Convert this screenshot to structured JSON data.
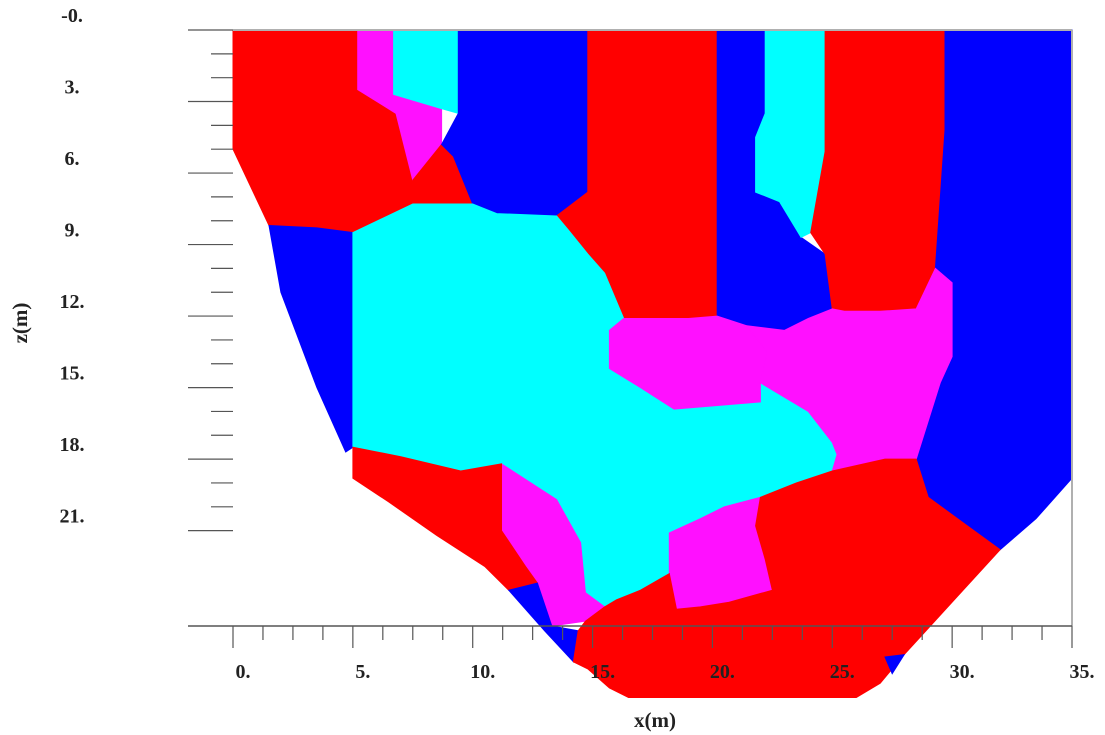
{
  "chart_data": {
    "type": "heatmap",
    "title": "",
    "xlabel": "x(m)",
    "ylabel": "z(m)",
    "xlim": [
      0,
      35
    ],
    "ylim": [
      0,
      25
    ],
    "y_axis_inverted": true,
    "x_ticks": [
      "0.",
      "5.",
      "10.",
      "15.",
      "20.",
      "25.",
      "30.",
      "35."
    ],
    "y_ticks": [
      "-0.",
      "3.",
      "6.",
      "9.",
      "12.",
      "15.",
      "18.",
      "21."
    ],
    "x_tick_values": [
      0,
      5,
      10,
      15,
      20,
      25,
      30,
      35
    ],
    "y_tick_values": [
      0,
      3,
      6,
      9,
      12,
      15,
      18,
      21
    ],
    "grid": false,
    "legend": "none",
    "colors": {
      "red": "#ff0000",
      "blue": "#0000ff",
      "cyan": "#00ffff",
      "magenta": "#ff10ff"
    },
    "regions": [
      {
        "color": "red",
        "polygon": [
          [
            0,
            0
          ],
          [
            5.2,
            0
          ],
          [
            5.2,
            2.5
          ],
          [
            6.8,
            3.5
          ],
          [
            7.5,
            5.6
          ],
          [
            7.5,
            7.3
          ],
          [
            5,
            8.5
          ],
          [
            3.5,
            8.3
          ],
          [
            1.5,
            8.2
          ],
          [
            0,
            5
          ]
        ]
      },
      {
        "color": "magenta",
        "polygon": [
          [
            5.2,
            0
          ],
          [
            6.7,
            0
          ],
          [
            6.7,
            2.7
          ],
          [
            8.7,
            3.3
          ],
          [
            8.7,
            4.8
          ],
          [
            7.5,
            6.3
          ],
          [
            6.8,
            3.5
          ],
          [
            5.2,
            2.5
          ]
        ]
      },
      {
        "color": "cyan",
        "polygon": [
          [
            6.7,
            0
          ],
          [
            9.4,
            0
          ],
          [
            9.4,
            3.5
          ],
          [
            8.7,
            3.3
          ],
          [
            6.7,
            2.7
          ]
        ]
      },
      {
        "color": "red",
        "polygon": [
          [
            8.7,
            4.8
          ],
          [
            9.2,
            5.3
          ],
          [
            10,
            7.3
          ],
          [
            7.5,
            7.3
          ],
          [
            7.5,
            6.3
          ]
        ]
      },
      {
        "color": "blue",
        "polygon": [
          [
            9.4,
            0
          ],
          [
            14.8,
            0
          ],
          [
            14.8,
            6.8
          ],
          [
            13.5,
            7.8
          ],
          [
            11,
            7.7
          ],
          [
            9.5,
            7.3
          ],
          [
            10,
            7.3
          ],
          [
            9.2,
            5.3
          ],
          [
            8.7,
            4.8
          ],
          [
            9.4,
            3.5
          ]
        ]
      },
      {
        "color": "red",
        "polygon": [
          [
            14.8,
            0
          ],
          [
            20.2,
            0
          ],
          [
            20.2,
            12
          ],
          [
            19,
            12.1
          ],
          [
            16.3,
            12.1
          ],
          [
            15.5,
            10.2
          ],
          [
            14.8,
            9.4
          ],
          [
            14,
            8.4
          ],
          [
            13.5,
            7.8
          ],
          [
            14.8,
            6.8
          ]
        ]
      },
      {
        "color": "blue",
        "polygon": [
          [
            20.2,
            0
          ],
          [
            22.2,
            0
          ],
          [
            22.2,
            3.5
          ],
          [
            21.8,
            4.5
          ],
          [
            21.8,
            6.8
          ],
          [
            22.8,
            7.2
          ],
          [
            23.7,
            8.7
          ],
          [
            24.7,
            9.4
          ],
          [
            25,
            11.7
          ],
          [
            24,
            12.1
          ],
          [
            23,
            12.6
          ],
          [
            21.4,
            12.4
          ],
          [
            20.2,
            12
          ]
        ]
      },
      {
        "color": "cyan",
        "polygon": [
          [
            22.2,
            0
          ],
          [
            24.7,
            0
          ],
          [
            24.7,
            5.1
          ],
          [
            24.1,
            8.5
          ],
          [
            23.7,
            8.7
          ],
          [
            22.8,
            7.2
          ],
          [
            21.8,
            6.8
          ],
          [
            21.8,
            4.5
          ],
          [
            22.2,
            3.5
          ]
        ]
      },
      {
        "color": "red",
        "polygon": [
          [
            24.7,
            0
          ],
          [
            29.7,
            0
          ],
          [
            29.7,
            4.2
          ],
          [
            29.3,
            10
          ],
          [
            28.5,
            11.7
          ],
          [
            27,
            11.8
          ],
          [
            25.5,
            11.8
          ],
          [
            25,
            11.7
          ],
          [
            24.7,
            9.4
          ],
          [
            24.1,
            8.5
          ],
          [
            24.7,
            5.1
          ]
        ]
      },
      {
        "color": "blue",
        "polygon": [
          [
            29.7,
            0
          ],
          [
            35,
            0
          ],
          [
            35,
            18.8
          ],
          [
            33.5,
            20.5
          ],
          [
            32,
            21.8
          ],
          [
            30.5,
            20.7
          ],
          [
            29,
            19.6
          ],
          [
            28.5,
            18
          ],
          [
            29.5,
            14.8
          ],
          [
            30,
            13.7
          ],
          [
            30,
            10.6
          ],
          [
            29.3,
            10
          ],
          [
            29.7,
            4.2
          ]
        ]
      },
      {
        "color": "blue",
        "polygon": [
          [
            1.5,
            8.2
          ],
          [
            3.5,
            8.3
          ],
          [
            5,
            8.5
          ],
          [
            5,
            17.5
          ],
          [
            4.7,
            17.7
          ],
          [
            3.5,
            15
          ],
          [
            2,
            11
          ]
        ]
      },
      {
        "color": "cyan",
        "polygon": [
          [
            5,
            8.5
          ],
          [
            7.5,
            7.3
          ],
          [
            10,
            7.3
          ],
          [
            11,
            7.7
          ],
          [
            13.5,
            7.8
          ],
          [
            14,
            8.4
          ],
          [
            14.8,
            9.4
          ],
          [
            15.5,
            10.2
          ],
          [
            16.3,
            12.1
          ],
          [
            15.7,
            12.6
          ],
          [
            15.7,
            14.2
          ],
          [
            17,
            15
          ],
          [
            18.4,
            15.9
          ],
          [
            22,
            15.6
          ],
          [
            22,
            14.8
          ],
          [
            24,
            16
          ],
          [
            25,
            17.3
          ],
          [
            25.2,
            17.8
          ],
          [
            25,
            18.5
          ],
          [
            23.5,
            19
          ],
          [
            22,
            19.6
          ],
          [
            20.5,
            20
          ],
          [
            19.5,
            20.5
          ],
          [
            18.2,
            21.1
          ],
          [
            18.2,
            22.8
          ],
          [
            17,
            23.5
          ],
          [
            16,
            23.9
          ],
          [
            15.5,
            24.2
          ],
          [
            14.7,
            23.6
          ],
          [
            14.5,
            21.5
          ],
          [
            13.5,
            19.7
          ],
          [
            11.2,
            18.2
          ],
          [
            9.5,
            18.5
          ],
          [
            7,
            17.9
          ],
          [
            5,
            17.5
          ]
        ]
      },
      {
        "color": "magenta",
        "polygon": [
          [
            16.3,
            12.1
          ],
          [
            19,
            12.1
          ],
          [
            20.2,
            12
          ],
          [
            21.4,
            12.4
          ],
          [
            22.3,
            13.5
          ],
          [
            22,
            14.8
          ],
          [
            22,
            15.6
          ],
          [
            18.4,
            15.9
          ],
          [
            17,
            15
          ],
          [
            15.7,
            14.2
          ],
          [
            15.7,
            12.6
          ]
        ]
      },
      {
        "color": "magenta",
        "polygon": [
          [
            23,
            12.6
          ],
          [
            24,
            12.1
          ],
          [
            25,
            11.7
          ],
          [
            25.5,
            11.8
          ],
          [
            27,
            11.8
          ],
          [
            28.5,
            11.7
          ],
          [
            29.3,
            10
          ],
          [
            30,
            10.6
          ],
          [
            30,
            13.7
          ],
          [
            29.5,
            14.8
          ],
          [
            28.5,
            18
          ],
          [
            27.2,
            18
          ],
          [
            25,
            18.5
          ],
          [
            25.2,
            17.8
          ],
          [
            25,
            17.3
          ],
          [
            24,
            16
          ],
          [
            22,
            14.8
          ],
          [
            22.3,
            13.5
          ],
          [
            21.4,
            12.4
          ]
        ]
      },
      {
        "color": "magenta",
        "polygon": [
          [
            11.2,
            18.2
          ],
          [
            13.5,
            19.7
          ],
          [
            14.5,
            21.5
          ],
          [
            14.7,
            23.6
          ],
          [
            15.5,
            24.2
          ],
          [
            14.7,
            24.8
          ],
          [
            13.3,
            25
          ],
          [
            12.7,
            23.2
          ],
          [
            12.2,
            22.5
          ],
          [
            11.2,
            21
          ]
        ]
      },
      {
        "color": "magenta",
        "polygon": [
          [
            18.2,
            22.8
          ],
          [
            18.2,
            21.1
          ],
          [
            19.5,
            20.5
          ],
          [
            20.5,
            20
          ],
          [
            22,
            19.6
          ],
          [
            21.8,
            20.8
          ],
          [
            22.2,
            22.2
          ],
          [
            22.5,
            23.5
          ],
          [
            20.7,
            24
          ],
          [
            19.5,
            24.2
          ],
          [
            18.5,
            24.3
          ]
        ]
      },
      {
        "color": "red",
        "polygon": [
          [
            5,
            17.5
          ],
          [
            7,
            17.9
          ],
          [
            9.5,
            18.5
          ],
          [
            11.2,
            18.2
          ],
          [
            11.2,
            21
          ],
          [
            12.2,
            22.5
          ],
          [
            12.7,
            23.2
          ],
          [
            11.5,
            23.5
          ],
          [
            10.5,
            22.5
          ],
          [
            8.5,
            21.2
          ],
          [
            6.5,
            19.8
          ],
          [
            5,
            18.8
          ]
        ]
      },
      {
        "color": "blue",
        "polygon": [
          [
            11.5,
            23.5
          ],
          [
            12.7,
            23.2
          ],
          [
            13.3,
            25
          ],
          [
            14.4,
            25.2
          ],
          [
            14.2,
            26.5
          ],
          [
            13,
            25.2
          ]
        ]
      },
      {
        "color": "red",
        "polygon": [
          [
            14.4,
            25.2
          ],
          [
            14.7,
            24.8
          ],
          [
            15.5,
            24.2
          ],
          [
            16,
            23.9
          ],
          [
            17,
            23.5
          ],
          [
            18.2,
            22.8
          ],
          [
            18.5,
            24.3
          ],
          [
            19.5,
            24.2
          ],
          [
            20.7,
            24
          ],
          [
            22.5,
            23.5
          ],
          [
            22.2,
            22.2
          ],
          [
            21.8,
            20.8
          ],
          [
            22,
            19.6
          ],
          [
            23.5,
            19
          ],
          [
            25,
            18.5
          ],
          [
            27.2,
            18
          ],
          [
            28.5,
            18
          ],
          [
            29,
            19.6
          ],
          [
            30.5,
            20.7
          ],
          [
            32,
            21.8
          ],
          [
            30,
            24
          ],
          [
            28,
            26.2
          ],
          [
            27,
            27.4
          ],
          [
            26,
            28
          ],
          [
            21,
            28
          ],
          [
            16.5,
            28
          ],
          [
            15.7,
            27.6
          ],
          [
            14.8,
            26.8
          ],
          [
            14.2,
            26.5
          ]
        ]
      },
      {
        "color": "blue",
        "polygon": [
          [
            27.2,
            26.3
          ],
          [
            28,
            26.2
          ],
          [
            27.5,
            27
          ]
        ]
      }
    ]
  }
}
